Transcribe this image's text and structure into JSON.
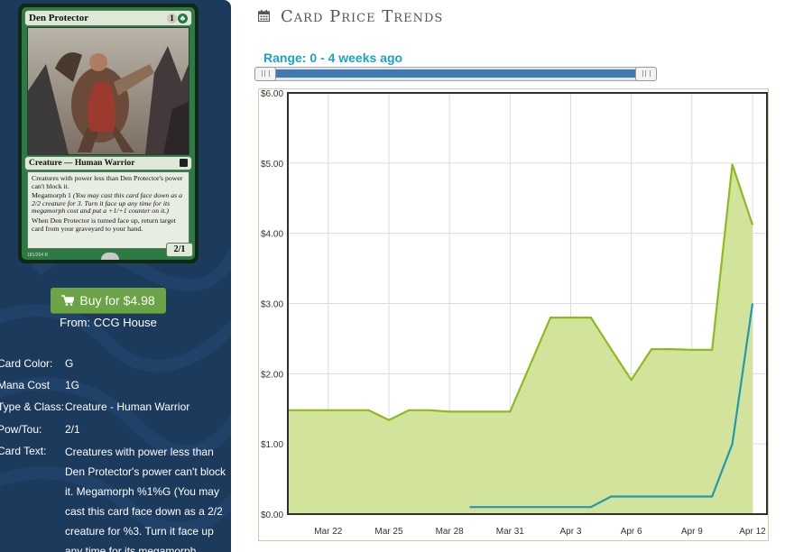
{
  "card": {
    "name": "Den Protector",
    "mana_cost_symbols": [
      "1",
      "G"
    ],
    "type_line": "Creature — Human Warrior",
    "rules_text_1": "Creatures with power less than Den Protector's power can't block it.",
    "megamorph_keyword": "Megamorph 1",
    "megamorph_reminder": "(You may cast this card face down as a 2/2 creature for 3. Turn it face up any time for its megamorph cost and put a +1/+1 counter on it.)",
    "rules_text_2": "When Den Protector is turned face up, return target card from your graveyard to your hand.",
    "power_toughness": "2/1",
    "collector_info": "181/264 R"
  },
  "buy": {
    "label": "Buy for $4.98",
    "icon": "cart-icon"
  },
  "seller": "From: CCG House",
  "attributes": {
    "color_label": "Card Color:",
    "color_value": "G",
    "mana_label": "Mana Cost",
    "mana_value": "1G",
    "type_label": "Type & Class:",
    "type_value": "Creature - Human Warrior",
    "powtou_label": "Pow/Tou:",
    "powtou_value": "2/1",
    "text_label": "Card Text:",
    "text_value": "Creatures with power less than Den Protector's power can't block it. Megamorph %1%G (You may cast this card face down as a 2/2 creature for %3. Turn it face up any time for its megamorph"
  },
  "section": {
    "icon": "calendar-icon",
    "title": "Card Price Trends"
  },
  "range_label": "Range: 0 - 4 weeks ago",
  "range_slider": {
    "min_weeks": 0,
    "max_weeks": 4
  },
  "colors": {
    "sidebar": "#1c3a5c",
    "buy_button": "#6aa446",
    "range_text": "#1aa3c6",
    "slider_fill": "#3f7ab0",
    "series_fill": "#d2e39c",
    "series_green": "#8dbb1f",
    "series_teal": "#1f9ab2",
    "plot_border": "#2c3033"
  },
  "chart_data": {
    "type": "area",
    "x_tick_labels": [
      "Mar 22",
      "Mar 25",
      "Mar 28",
      "Mar 31",
      "Apr 3",
      "Apr 6",
      "Apr 9",
      "Apr 12"
    ],
    "y_tick_labels": [
      "$0.00",
      "$1.00",
      "$2.00",
      "$3.00",
      "$4.00",
      "$5.00",
      "$6.00"
    ],
    "ylim": [
      0,
      6
    ],
    "xlim": [
      "2015-03-20",
      "2015-04-12"
    ],
    "grid": true,
    "series": [
      {
        "style": "area",
        "color": "#8dbb1f",
        "x": [
          "2015-03-20",
          "2015-03-23",
          "2015-03-24",
          "2015-03-25",
          "2015-03-26",
          "2015-03-27",
          "2015-03-28",
          "2015-03-29",
          "2015-03-30",
          "2015-03-31",
          "2015-04-02",
          "2015-04-03",
          "2015-04-04",
          "2015-04-05",
          "2015-04-06",
          "2015-04-07",
          "2015-04-08",
          "2015-04-09",
          "2015-04-10",
          "2015-04-11",
          "2015-04-12"
        ],
        "values": [
          1.48,
          1.48,
          1.48,
          1.34,
          1.48,
          1.48,
          1.46,
          1.46,
          1.46,
          1.46,
          2.8,
          2.8,
          2.8,
          2.35,
          1.91,
          2.35,
          2.35,
          2.34,
          2.34,
          4.98,
          4.12
        ]
      },
      {
        "style": "line",
        "color": "#1f9ab2",
        "x": [
          "2015-03-29",
          "2015-04-04",
          "2015-04-05",
          "2015-04-06",
          "2015-04-07",
          "2015-04-08",
          "2015-04-09",
          "2015-04-10",
          "2015-04-11",
          "2015-04-12"
        ],
        "values": [
          0.1,
          0.1,
          0.25,
          0.25,
          0.25,
          0.25,
          0.25,
          0.25,
          1.0,
          3.0
        ]
      }
    ]
  }
}
